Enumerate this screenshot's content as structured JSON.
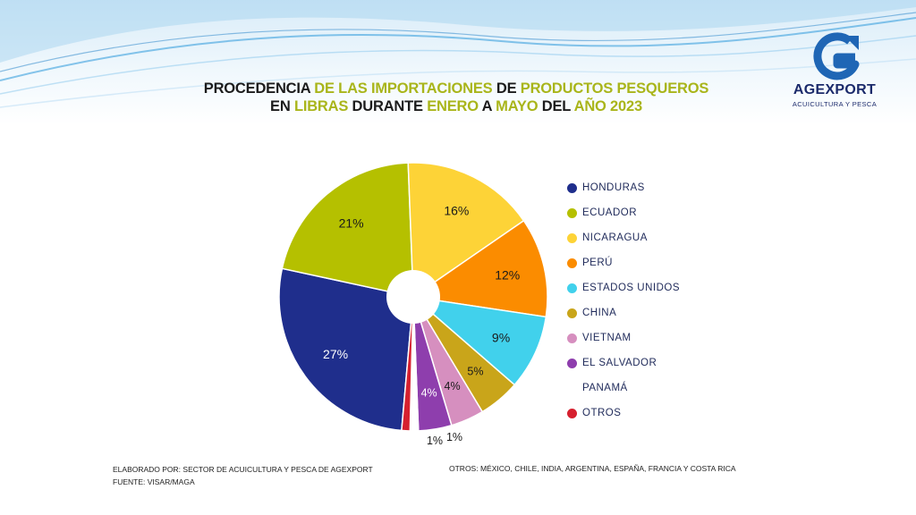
{
  "header": {
    "title_line1": [
      {
        "text": "PROCEDENCIA ",
        "highlight": false
      },
      {
        "text": "DE LAS IMPORTACIONES ",
        "highlight": true
      },
      {
        "text": " DE ",
        "highlight": false
      },
      {
        "text": "PRODUCTOS PESQUEROS",
        "highlight": true
      }
    ],
    "title_line2": [
      {
        "text": "EN ",
        "highlight": false
      },
      {
        "text": "LIBRAS",
        "highlight": true
      },
      {
        "text": " DURANTE ",
        "highlight": false
      },
      {
        "text": "ENERO",
        "highlight": true
      },
      {
        "text": " A ",
        "highlight": false
      },
      {
        "text": "MAYO",
        "highlight": true
      },
      {
        "text": " DEL ",
        "highlight": false
      },
      {
        "text": "AÑO 2023",
        "highlight": true
      }
    ]
  },
  "logo": {
    "name": "AGEXPORT",
    "subtitle": "ACUICULTURA Y PESCA",
    "icon": "agexport-g-arrow-icon"
  },
  "chart_data": {
    "type": "pie",
    "donut_hole": true,
    "categories": [
      "HONDURAS",
      "ECUADOR",
      "NICARAGUA",
      "PERÚ",
      "ESTADOS UNIDOS",
      "CHINA",
      "VIETNAM",
      "EL SALVADOR",
      "PANAMÁ",
      "OTROS"
    ],
    "values": [
      27,
      21,
      16,
      12,
      9,
      5,
      4,
      4,
      1,
      1
    ],
    "labels": [
      "27%",
      "21%",
      "16%",
      "12%",
      "9%",
      "5%",
      "4%",
      "4%",
      "1%",
      "1%"
    ],
    "colors": [
      "#1f2e8c",
      "#b5c000",
      "#fdd337",
      "#fb8c00",
      "#41d1ec",
      "#c9a51a",
      "#d68fbf",
      "#8e3ead",
      "#ffffff",
      "#d6202f"
    ],
    "label_colors": [
      "#ffffff",
      "#1a1a1a",
      "#1a1a1a",
      "#1a1a1a",
      "#1a1a1a",
      "#1a1a1a",
      "#1a1a1a",
      "#ffffff",
      "#1a1a1a",
      "#1a1a1a"
    ],
    "legend_position": "right"
  },
  "footer": {
    "elaborado": "ELABORADO POR: SECTOR DE ACUICULTURA Y PESCA DE AGEXPORT",
    "fuente": "FUENTE:  VISAR/MAGA",
    "otros": "OTROS:  MÉXICO, CHILE, INDIA, ARGENTINA, ESPAÑA, FRANCIA Y COSTA RICA"
  }
}
